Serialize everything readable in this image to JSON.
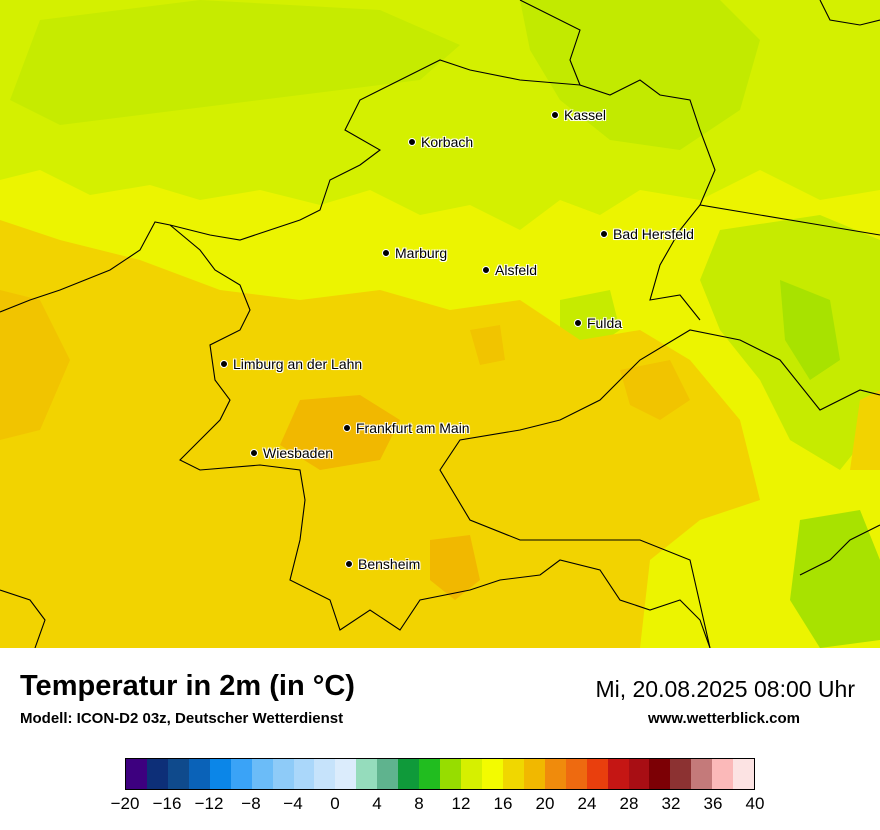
{
  "map": {
    "cities": [
      {
        "name": "Kassel",
        "id": "kassel"
      },
      {
        "name": "Korbach",
        "id": "korbach"
      },
      {
        "name": "Bad Hersfeld",
        "id": "bad-hersfeld"
      },
      {
        "name": "Marburg",
        "id": "marburg"
      },
      {
        "name": "Alsfeld",
        "id": "alsfeld"
      },
      {
        "name": "Fulda",
        "id": "fulda"
      },
      {
        "name": "Limburg an der Lahn",
        "id": "limburg"
      },
      {
        "name": "Frankfurt am Main",
        "id": "frankfurt"
      },
      {
        "name": "Wiesbaden",
        "id": "wiesbaden"
      },
      {
        "name": "Bensheim",
        "id": "bensheim"
      }
    ]
  },
  "footer": {
    "title": "Temperatur in 2m (in °C)",
    "subtitle": "Modell: ICON-D2 03z, Deutscher Wetterdienst",
    "datetime": "Mi, 20.08.2025 08:00 Uhr",
    "website": "www.wetterblick.com"
  },
  "legend": {
    "min": -20,
    "max": 40,
    "tick_labels": [
      "−20",
      "−16",
      "−12",
      "−8",
      "−4",
      "0",
      "4",
      "8",
      "12",
      "16",
      "20",
      "24",
      "28",
      "32",
      "36",
      "40"
    ],
    "tick_values": [
      -20,
      -16,
      -12,
      -8,
      -4,
      0,
      4,
      8,
      12,
      16,
      20,
      24,
      28,
      32,
      36,
      40
    ],
    "colors": [
      "#3d007f",
      "#0d2f78",
      "#0f4a8c",
      "#0a62b8",
      "#0b86e8",
      "#3aa3f7",
      "#6bbcf8",
      "#8ecbf8",
      "#aad7fa",
      "#c6e3fb",
      "#dbecfc",
      "#95dcbc",
      "#5fb38e",
      "#0f9a3a",
      "#21bd1f",
      "#97dd00",
      "#d6f000",
      "#f3fb00",
      "#f0d700",
      "#f1b800",
      "#f08b0c",
      "#ee6a10",
      "#e93f0d",
      "#c51614",
      "#a80e14",
      "#7c0005",
      "#8c3232",
      "#c47a7a",
      "#fbb9b9",
      "#fce3e3"
    ]
  },
  "colors": {
    "base_field": "#ecf400",
    "cool_field": "#d4f000",
    "green_field": "#a8e200",
    "warm_field": "#f2d300",
    "orange_field": "#f1b800",
    "border": "#000000"
  }
}
